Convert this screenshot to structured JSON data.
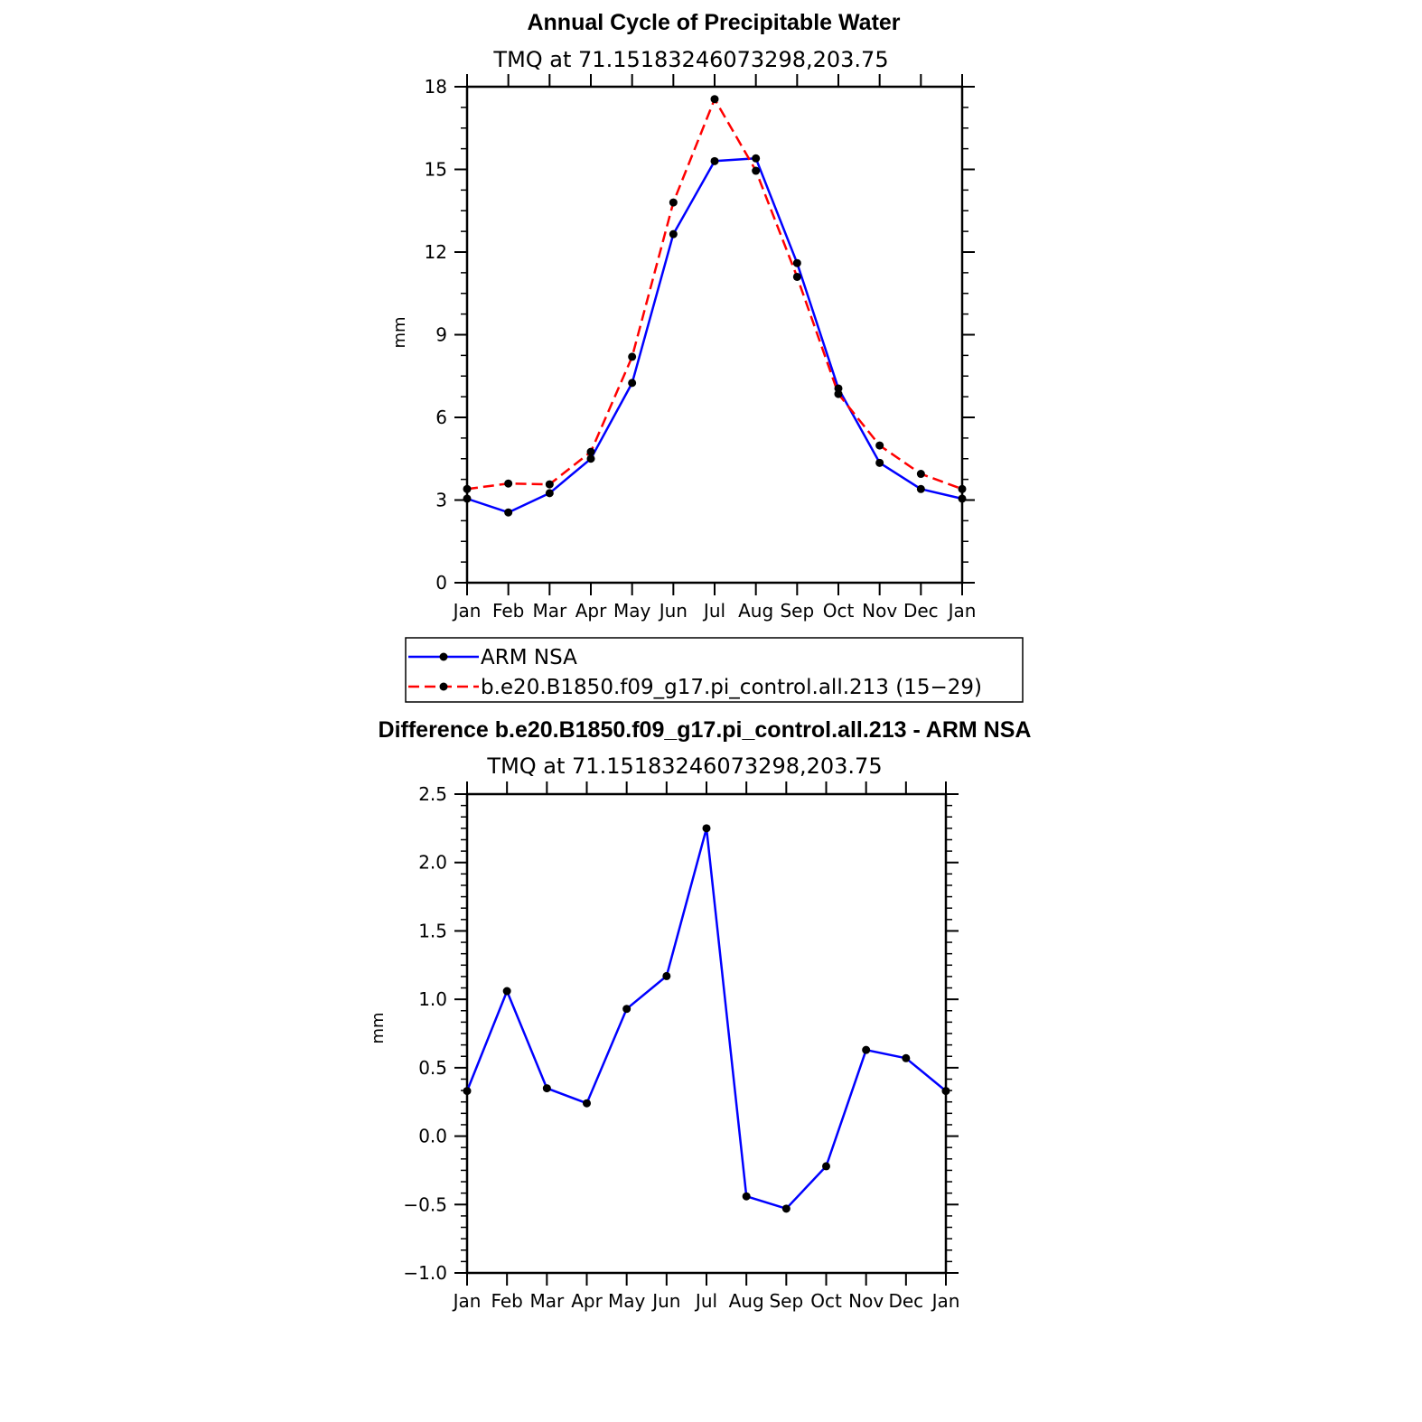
{
  "colors": {
    "obs": "#0000ff",
    "model": "#ff0000",
    "diff": "#0000ff",
    "marker": "#000000"
  },
  "legend": {
    "obs_label": "ARM NSA",
    "model_label": "b.e20.B1850.f09_g17.pi_control.all.213 (15−29)"
  },
  "chart_data": [
    {
      "type": "line",
      "title": "Annual Cycle of Precipitable Water",
      "subtitle": "TMQ  at  71.15183246073298,203.75",
      "xlabel": "",
      "ylabel": "mm",
      "categories": [
        "Jan",
        "Feb",
        "Mar",
        "Apr",
        "May",
        "Jun",
        "Jul",
        "Aug",
        "Sep",
        "Oct",
        "Nov",
        "Dec",
        "Jan"
      ],
      "ylim": [
        0,
        18
      ],
      "yticks": [
        0,
        3,
        6,
        9,
        12,
        15,
        18
      ],
      "ytick_labels": [
        "0",
        "3",
        "6",
        "9",
        "12",
        "15",
        "18"
      ],
      "series": [
        {
          "name": "ARM NSA",
          "style": "solid",
          "color": "#0000ff",
          "values": [
            3.05,
            2.55,
            3.25,
            4.5,
            7.25,
            12.65,
            15.3,
            15.4,
            11.6,
            7.05,
            4.35,
            3.4,
            3.05
          ]
        },
        {
          "name": "b.e20.B1850.f09_g17.pi_control.all.213 (15−29)",
          "style": "dashed",
          "color": "#ff0000",
          "values": [
            3.4,
            3.6,
            3.57,
            4.75,
            8.2,
            13.8,
            17.55,
            14.95,
            11.1,
            6.85,
            4.98,
            3.95,
            3.4
          ]
        }
      ]
    },
    {
      "type": "line",
      "title": "Difference b.e20.B1850.f09_g17.pi_control.all.213 - ARM NSA",
      "subtitle": "TMQ  at  71.15183246073298,203.75",
      "xlabel": "",
      "ylabel": "mm",
      "categories": [
        "Jan",
        "Feb",
        "Mar",
        "Apr",
        "May",
        "Jun",
        "Jul",
        "Aug",
        "Sep",
        "Oct",
        "Nov",
        "Dec",
        "Jan"
      ],
      "ylim": [
        -1.0,
        2.5
      ],
      "yticks": [
        -1.0,
        -0.5,
        0.0,
        0.5,
        1.0,
        1.5,
        2.0,
        2.5
      ],
      "ytick_labels": [
        "−1.0",
        "−0.5",
        "0.0",
        "0.5",
        "1.0",
        "1.5",
        "2.0",
        "2.5"
      ],
      "series": [
        {
          "name": "Difference",
          "style": "solid",
          "color": "#0000ff",
          "values": [
            0.33,
            1.06,
            0.35,
            0.24,
            0.93,
            1.17,
            2.25,
            -0.44,
            -0.53,
            -0.22,
            0.63,
            0.57,
            0.33
          ]
        }
      ]
    }
  ]
}
